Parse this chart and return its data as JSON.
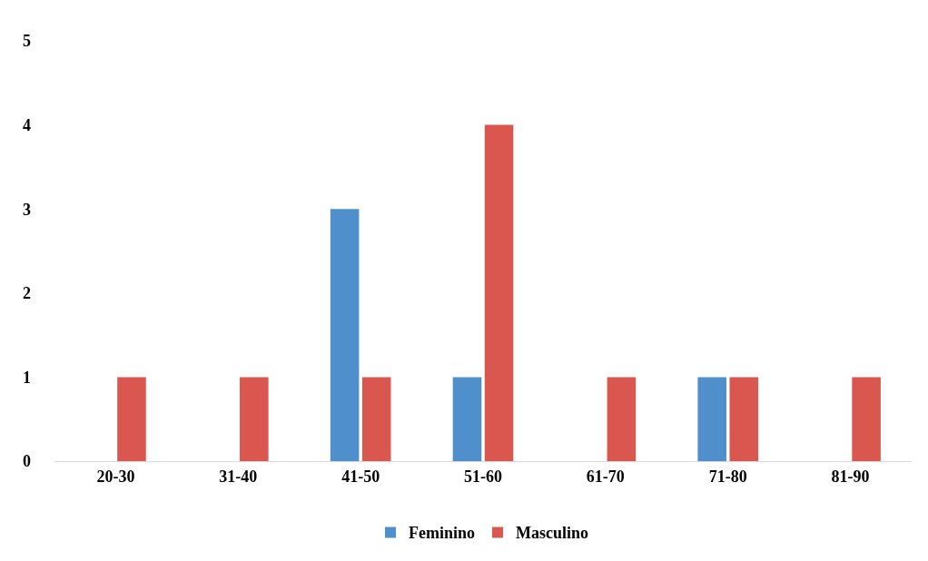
{
  "chart_data": {
    "type": "bar",
    "categories": [
      "20-30",
      "31-40",
      "41-50",
      "51-60",
      "61-70",
      "71-80",
      "81-90"
    ],
    "series": [
      {
        "name": "Feminino",
        "color": "#4f8fcc",
        "values": [
          0,
          0,
          3,
          1,
          0,
          1,
          0
        ]
      },
      {
        "name": "Masculino",
        "color": "#d9574f",
        "values": [
          1,
          1,
          1,
          4,
          1,
          1,
          1
        ]
      }
    ],
    "ylim": [
      0,
      5
    ],
    "yticks": [
      0,
      1,
      2,
      3,
      4,
      5
    ],
    "grid": false,
    "legend": "bottom"
  }
}
